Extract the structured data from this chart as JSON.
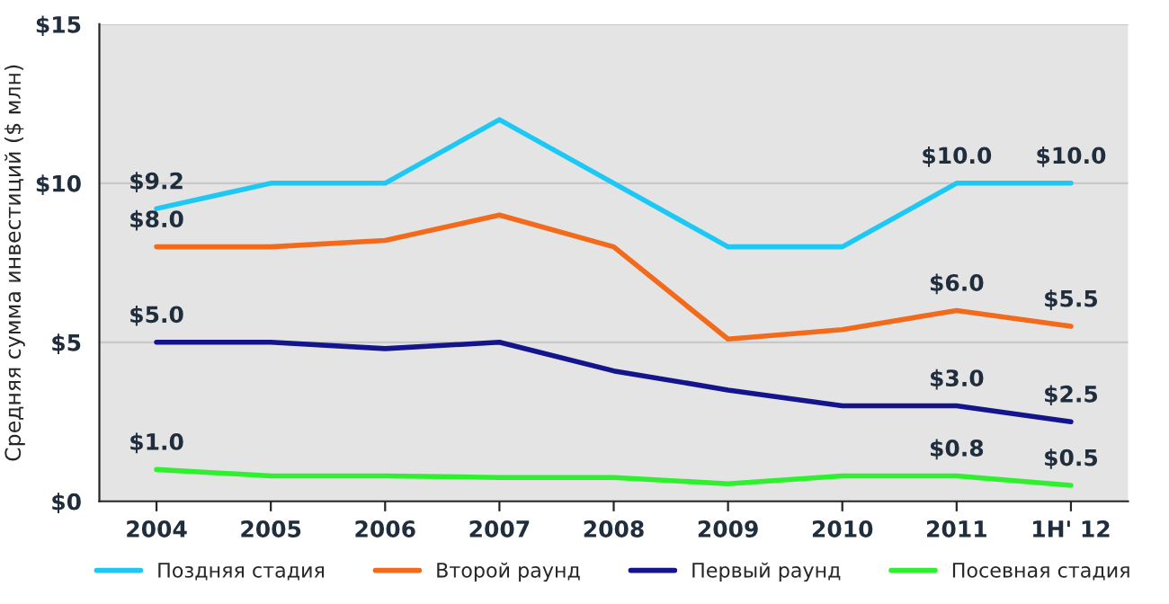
{
  "chart_data": {
    "type": "line",
    "ylabel": "Средняя сумма инвестиций ($ млн)",
    "categories": [
      "2004",
      "2005",
      "2006",
      "2007",
      "2008",
      "2009",
      "2010",
      "2011",
      "1H' 12"
    ],
    "series": [
      {
        "name": "Поздняя стадия",
        "color": "#1ec8f5",
        "values": [
          9.2,
          10,
          10,
          12,
          10,
          8,
          8,
          10,
          10
        ],
        "value_labels": [
          "$9.2",
          null,
          null,
          null,
          null,
          null,
          null,
          "$10.0",
          "$10.0"
        ]
      },
      {
        "name": "Второй раунд",
        "color": "#f26a1b",
        "values": [
          8,
          8,
          8.2,
          9,
          8,
          5.1,
          5.4,
          6,
          5.5
        ],
        "value_labels": [
          "$8.0",
          null,
          null,
          null,
          null,
          null,
          null,
          "$6.0",
          "$5.5"
        ]
      },
      {
        "name": "Первый раунд",
        "color": "#14148c",
        "values": [
          5,
          5,
          4.8,
          5,
          4.1,
          3.5,
          3,
          3,
          2.5
        ],
        "value_labels": [
          "$5.0",
          null,
          null,
          null,
          null,
          null,
          null,
          "$3.0",
          "$2.5"
        ]
      },
      {
        "name": "Посевная стадия",
        "color": "#2ef02e",
        "values": [
          1,
          0.8,
          0.8,
          0.75,
          0.75,
          0.55,
          0.8,
          0.8,
          0.5
        ],
        "value_labels": [
          "$1.0",
          null,
          null,
          null,
          null,
          null,
          null,
          "$0.8",
          "$0.5"
        ]
      }
    ],
    "ylim": [
      0,
      15
    ],
    "yticks": [
      {
        "value": 0,
        "label": "$0"
      },
      {
        "value": 5,
        "label": "$5"
      },
      {
        "value": 10,
        "label": "$10"
      },
      {
        "value": 15,
        "label": "$15"
      }
    ],
    "grid": "y",
    "legend": "bottom",
    "marker": "none",
    "line_style": "solid"
  }
}
